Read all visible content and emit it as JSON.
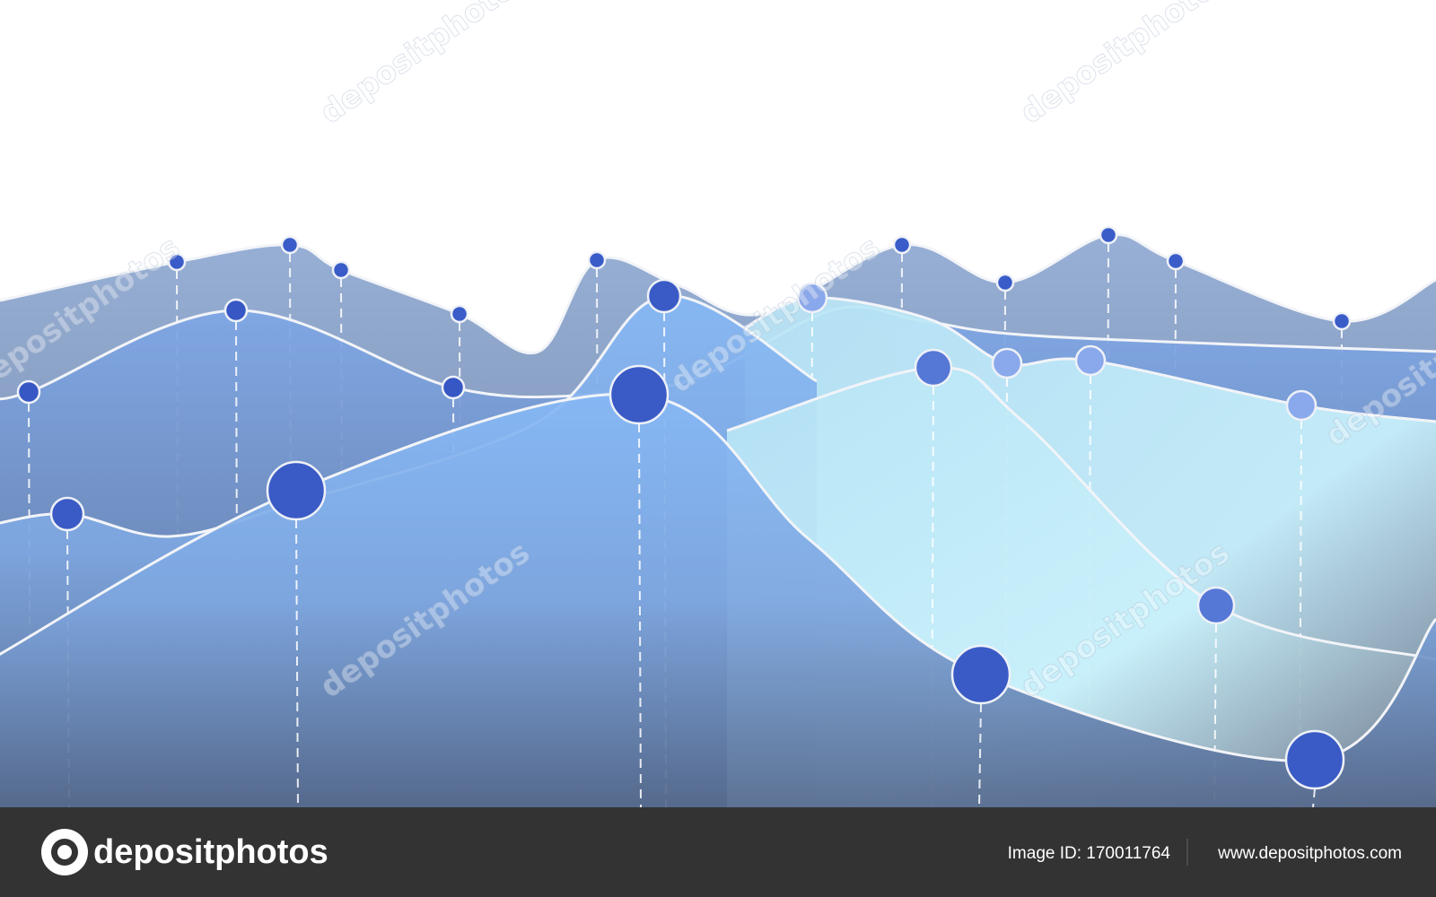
{
  "watermark": "depositphotos",
  "footer": {
    "logo": "depositphotos",
    "image_id": "Image ID: 170011764",
    "url": "www.depositphotos.com"
  }
}
